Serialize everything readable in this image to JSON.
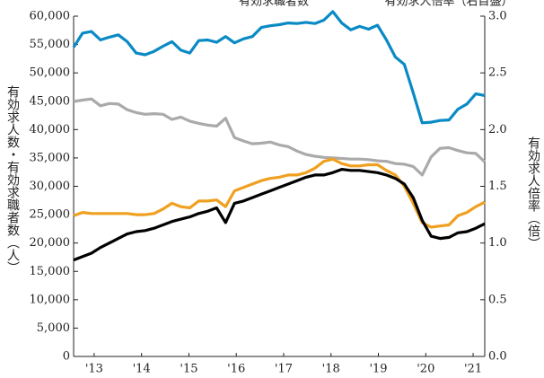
{
  "chart_data": {
    "type": "line",
    "annotations": [
      "有効求職者数",
      "有効求人倍率（右目盛）"
    ],
    "ylabel": "有効求人数・有効求職者数（人）",
    "y2label": "有効求人倍率（倍）",
    "x": [
      0,
      1,
      2,
      3,
      4,
      5,
      6,
      7,
      8,
      9,
      10,
      11,
      12,
      13,
      14,
      15,
      16,
      17,
      18,
      19,
      20,
      21,
      22,
      23,
      24,
      25,
      26,
      27,
      28,
      29,
      30,
      31,
      32,
      33,
      34,
      35,
      36,
      37,
      38,
      39,
      40,
      41,
      42,
      43,
      44,
      45,
      46
    ],
    "xlim": [
      0,
      46
    ],
    "xticks": [
      {
        "value": 2.3,
        "label": "'13"
      },
      {
        "value": 7.6,
        "label": "'14"
      },
      {
        "value": 12.9,
        "label": "'15"
      },
      {
        "value": 18.2,
        "label": "'16"
      },
      {
        "value": 23.5,
        "label": "'17"
      },
      {
        "value": 28.8,
        "label": "'18"
      },
      {
        "value": 34.1,
        "label": "'19"
      },
      {
        "value": 39.4,
        "label": "'20"
      },
      {
        "value": 44.7,
        "label": "'21"
      }
    ],
    "ylim": [
      0,
      60000
    ],
    "yticks": [
      0,
      {
        "value": 5000,
        "label": "5,000"
      },
      {
        "value": 10000,
        "label": "10,000"
      },
      {
        "value": 15000,
        "label": "15,000"
      },
      {
        "value": 20000,
        "label": "20,000"
      },
      {
        "value": 25000,
        "label": "25,000"
      },
      {
        "value": 30000,
        "label": "30,000"
      },
      {
        "value": 35000,
        "label": "35,000"
      },
      {
        "value": 40000,
        "label": "40,000"
      },
      {
        "value": 45000,
        "label": "45,000"
      },
      {
        "value": 50000,
        "label": "50,000"
      },
      {
        "value": 55000,
        "label": "55,000"
      },
      {
        "value": 60000,
        "label": "60,000"
      }
    ],
    "y2lim": [
      0,
      3
    ],
    "y2ticks": [
      {
        "value": 0,
        "label": "0.0"
      },
      0.5,
      {
        "value": 1,
        "label": "1.0"
      },
      1.5,
      {
        "value": 2,
        "label": "2.0"
      },
      2.5,
      {
        "value": 3,
        "label": "3.0"
      }
    ],
    "series": [
      {
        "color": "#0a8ac4",
        "values": [
          54500,
          57000,
          57300,
          55800,
          56300,
          56700,
          55500,
          53500,
          53200,
          53800,
          54700,
          55500,
          54000,
          53500,
          55700,
          55800,
          55400,
          56400,
          55300,
          56000,
          56400,
          58000,
          58300,
          58500,
          58800,
          58700,
          58900,
          58700,
          59300,
          60800,
          58800,
          57600,
          58200,
          57700,
          58400,
          55800,
          52800,
          51500,
          46500,
          41200,
          41300,
          41600,
          41700,
          43600,
          44500,
          46300,
          46000
        ]
      },
      {
        "color": "#aaaaaa",
        "values": [
          44960,
          45200,
          45400,
          44200,
          44600,
          44500,
          43500,
          43000,
          42700,
          42800,
          42700,
          41800,
          42200,
          41500,
          41100,
          40800,
          40600,
          42000,
          38600,
          38000,
          37500,
          37600,
          37800,
          37300,
          37000,
          36200,
          35600,
          35300,
          35100,
          35000,
          34900,
          34800,
          34800,
          34700,
          34500,
          34400,
          34000,
          33900,
          33500,
          32000,
          35200,
          36700,
          36800,
          36300,
          35900,
          35800,
          34300
        ]
      },
      {
        "color": "#f0a020",
        "axis": "y2",
        "values": [
          1.24,
          1.27,
          1.26,
          1.26,
          1.26,
          1.26,
          1.26,
          1.25,
          1.25,
          1.26,
          1.3,
          1.35,
          1.32,
          1.31,
          1.37,
          1.37,
          1.38,
          1.32,
          1.46,
          1.49,
          1.52,
          1.55,
          1.57,
          1.58,
          1.6,
          1.6,
          1.62,
          1.66,
          1.72,
          1.74,
          1.7,
          1.68,
          1.68,
          1.69,
          1.69,
          1.64,
          1.6,
          1.5,
          1.35,
          1.18,
          1.14,
          1.15,
          1.16,
          1.24,
          1.27,
          1.32,
          1.36
        ]
      },
      {
        "color": "#000000",
        "axis": "y2",
        "values": [
          0.85,
          0.88,
          0.91,
          0.96,
          1.0,
          1.04,
          1.08,
          1.1,
          1.11,
          1.13,
          1.16,
          1.19,
          1.21,
          1.23,
          1.26,
          1.28,
          1.31,
          1.18,
          1.35,
          1.37,
          1.4,
          1.43,
          1.46,
          1.49,
          1.52,
          1.55,
          1.58,
          1.6,
          1.6,
          1.62,
          1.65,
          1.64,
          1.64,
          1.63,
          1.62,
          1.6,
          1.57,
          1.52,
          1.4,
          1.2,
          1.06,
          1.04,
          1.05,
          1.09,
          1.1,
          1.13,
          1.17
        ]
      }
    ]
  }
}
